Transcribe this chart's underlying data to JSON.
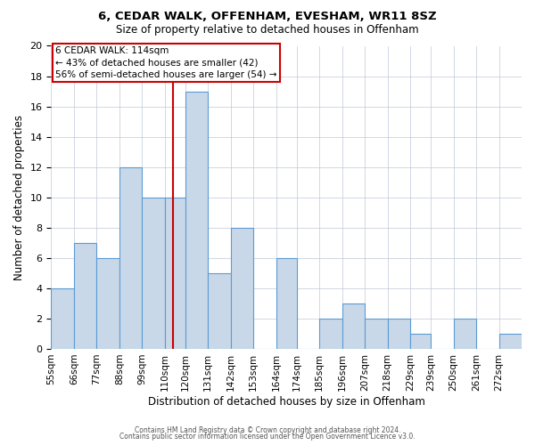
{
  "title": "6, CEDAR WALK, OFFENHAM, EVESHAM, WR11 8SZ",
  "subtitle": "Size of property relative to detached houses in Offenham",
  "xlabel": "Distribution of detached houses by size in Offenham",
  "ylabel": "Number of detached properties",
  "bins": [
    55,
    66,
    77,
    88,
    99,
    110,
    120,
    131,
    142,
    153,
    164,
    174,
    185,
    196,
    207,
    218,
    229,
    239,
    250,
    261,
    272
  ],
  "bin_labels": [
    "55sqm",
    "66sqm",
    "77sqm",
    "88sqm",
    "99sqm",
    "110sqm",
    "120sqm",
    "131sqm",
    "142sqm",
    "153sqm",
    "164sqm",
    "174sqm",
    "185sqm",
    "196sqm",
    "207sqm",
    "218sqm",
    "229sqm",
    "239sqm",
    "250sqm",
    "261sqm",
    "272sqm"
  ],
  "counts": [
    4,
    7,
    6,
    12,
    10,
    10,
    17,
    5,
    8,
    0,
    6,
    0,
    2,
    3,
    2,
    2,
    1,
    0,
    2,
    0,
    1
  ],
  "bar_color": "#c8d8e8",
  "bar_edge_color": "#5b9bd5",
  "property_size": 114,
  "vline_color": "#cc0000",
  "annotation_line1": "6 CEDAR WALK: 114sqm",
  "annotation_line2": "← 43% of detached houses are smaller (42)",
  "annotation_line3": "56% of semi-detached houses are larger (54) →",
  "annotation_box_color": "#ffffff",
  "annotation_box_edge": "#cc0000",
  "ylim": [
    0,
    20
  ],
  "yticks": [
    0,
    2,
    4,
    6,
    8,
    10,
    12,
    14,
    16,
    18,
    20
  ],
  "background_color": "#ffffff",
  "grid_color": "#c0c8d8",
  "footer_line1": "Contains HM Land Registry data © Crown copyright and database right 2024.",
  "footer_line2": "Contains public sector information licensed under the Open Government Licence v3.0."
}
